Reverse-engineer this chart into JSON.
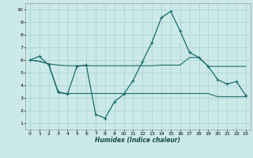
{
  "xlabel": "Humidex (Indice chaleur)",
  "background_color": "#cce9e9",
  "grid_color": "#aad4d4",
  "line_color": "#1a6b6b",
  "xlim": [
    -0.5,
    23.5
  ],
  "ylim": [
    0.5,
    10.5
  ],
  "xticks": [
    0,
    1,
    2,
    3,
    4,
    5,
    6,
    7,
    8,
    9,
    10,
    11,
    12,
    13,
    14,
    15,
    16,
    17,
    18,
    19,
    20,
    21,
    22,
    23
  ],
  "yticks": [
    1,
    2,
    3,
    4,
    5,
    6,
    7,
    8,
    9,
    10
  ],
  "line1_x": [
    0,
    1,
    2,
    3,
    4,
    5,
    6,
    7,
    8,
    9,
    10,
    11,
    12,
    13,
    14,
    15,
    16,
    17,
    18,
    19,
    20,
    21,
    22,
    23
  ],
  "line1_y": [
    6.0,
    6.3,
    5.6,
    3.5,
    3.3,
    5.5,
    5.6,
    1.7,
    1.4,
    2.7,
    3.3,
    4.4,
    5.9,
    7.4,
    9.35,
    9.85,
    8.3,
    6.6,
    6.2,
    5.5,
    4.45,
    4.1,
    4.3,
    3.2
  ],
  "line2_x": [
    0,
    1,
    2,
    3,
    4,
    5,
    6,
    7,
    8,
    9,
    10,
    11,
    12,
    13,
    14,
    15,
    16,
    17,
    18,
    19,
    20,
    21,
    22,
    23
  ],
  "line2_y": [
    6.0,
    5.9,
    5.7,
    5.6,
    5.55,
    5.55,
    5.55,
    5.55,
    5.55,
    5.55,
    5.55,
    5.55,
    5.55,
    5.55,
    5.6,
    5.6,
    5.6,
    6.2,
    6.2,
    5.5,
    5.5,
    5.5,
    5.5,
    5.5
  ],
  "line3_x": [
    0,
    1,
    2,
    3,
    4,
    5,
    6,
    7,
    8,
    9,
    10,
    11,
    12,
    13,
    14,
    15,
    16,
    17,
    18,
    19,
    20,
    21,
    22,
    23
  ],
  "line3_y": [
    6.0,
    5.9,
    5.7,
    3.4,
    3.35,
    3.35,
    3.35,
    3.35,
    3.35,
    3.35,
    3.35,
    3.35,
    3.35,
    3.35,
    3.35,
    3.35,
    3.35,
    3.35,
    3.35,
    3.35,
    3.1,
    3.1,
    3.1,
    3.1
  ]
}
